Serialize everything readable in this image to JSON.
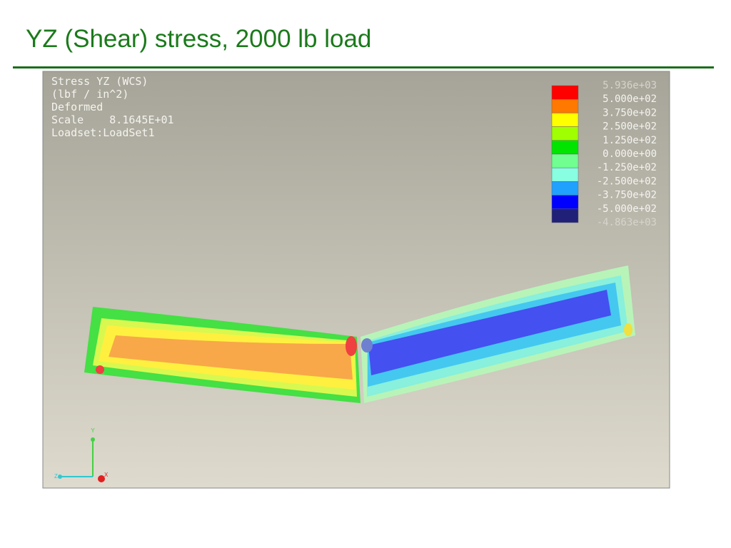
{
  "header": {
    "title": "YZ (Shear) stress, 2000 lb load"
  },
  "viewport": {
    "info": [
      "Stress YZ (WCS)",
      "(lbf / in^2)",
      "Deformed",
      "Scale    8.1645E+01",
      "Loadset:LoadSet1"
    ],
    "legend": {
      "labels": [
        "5.936e+03",
        "5.000e+02",
        "3.750e+02",
        "2.500e+02",
        "1.250e+02",
        "0.000e+00",
        "-1.250e+02",
        "-2.500e+02",
        "-3.750e+02",
        "-5.000e+02",
        "-4.863e+03"
      ]
    },
    "triad": {
      "y": "Y",
      "z": "Z",
      "x": "X"
    }
  }
}
